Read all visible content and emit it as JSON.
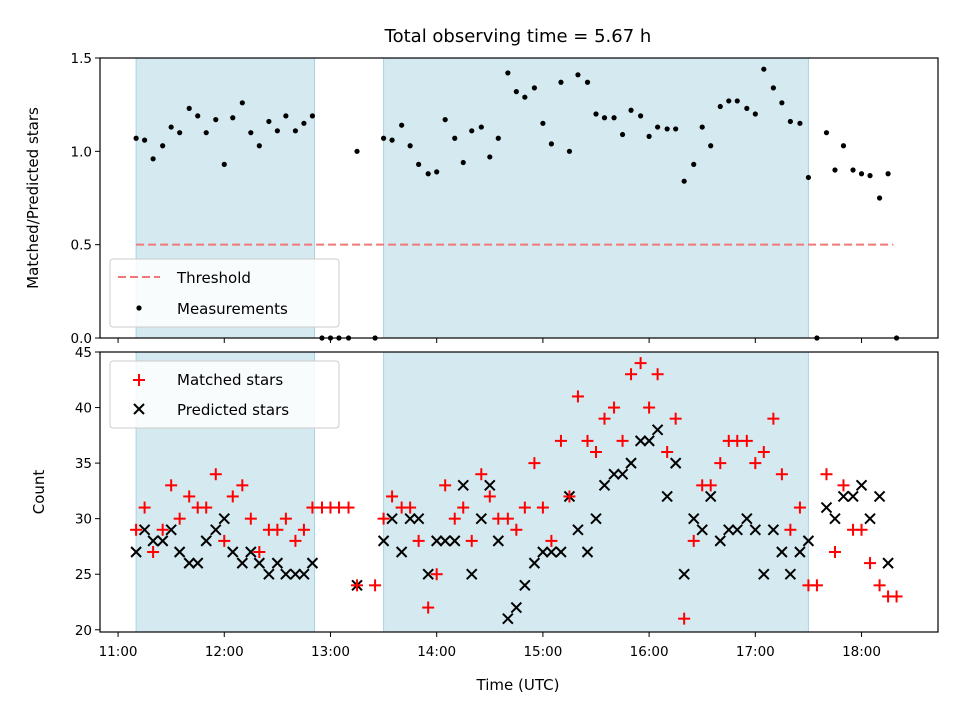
{
  "chart_data": [
    {
      "type": "scatter",
      "title": "Total observing time = 5.67 h",
      "xlabel": "",
      "ylabel": "Matched/Predicted stars",
      "xlim": [
        10.83,
        18.72
      ],
      "ylim": [
        0,
        1.5
      ],
      "yticks": [
        0.0,
        0.5,
        1.0,
        1.5
      ],
      "ytick_labels": [
        "0.0",
        "0.5",
        "1.0",
        "1.5"
      ],
      "shaded_intervals_hours": [
        [
          11.17,
          12.85
        ],
        [
          13.5,
          17.5
        ]
      ],
      "shade_color": "#d4eaf0",
      "threshold": {
        "name": "Threshold",
        "value": 0.5,
        "x_range": [
          11.17,
          18.3
        ],
        "color": "#f07878"
      },
      "series": [
        {
          "name": "Measurements",
          "color": "#000000",
          "x": [
            11.17,
            11.25,
            11.33,
            11.42,
            11.5,
            11.58,
            11.67,
            11.75,
            11.83,
            11.92,
            12.0,
            12.08,
            12.17,
            12.25,
            12.33,
            12.42,
            12.5,
            12.58,
            12.67,
            12.75,
            12.83,
            12.92,
            13.0,
            13.08,
            13.17,
            13.25,
            13.42,
            13.5,
            13.58,
            13.67,
            13.75,
            13.83,
            13.92,
            14.0,
            14.08,
            14.17,
            14.25,
            14.33,
            14.42,
            14.5,
            14.58,
            14.67,
            14.75,
            14.83,
            14.92,
            15.0,
            15.08,
            15.17,
            15.25,
            15.33,
            15.42,
            15.5,
            15.58,
            15.67,
            15.75,
            15.83,
            15.92,
            16.0,
            16.08,
            16.17,
            16.25,
            16.33,
            16.42,
            16.5,
            16.58,
            16.67,
            16.75,
            16.83,
            16.92,
            17.0,
            17.08,
            17.17,
            17.25,
            17.33,
            17.42,
            17.5,
            17.58,
            17.67,
            17.75,
            17.83,
            17.92,
            18.0,
            18.08,
            18.17,
            18.25,
            18.33
          ],
          "y": [
            1.07,
            1.06,
            0.96,
            1.03,
            1.13,
            1.1,
            1.23,
            1.19,
            1.1,
            1.17,
            0.93,
            1.18,
            1.26,
            1.1,
            1.03,
            1.16,
            1.11,
            1.19,
            1.11,
            1.15,
            1.19,
            0.0,
            0.0,
            0.0,
            0.0,
            1.0,
            0.0,
            1.07,
            1.06,
            1.14,
            1.03,
            0.93,
            0.88,
            0.89,
            1.17,
            1.07,
            0.94,
            1.11,
            1.13,
            0.97,
            1.07,
            1.42,
            1.32,
            1.29,
            1.34,
            1.15,
            1.04,
            1.37,
            1.0,
            1.41,
            1.37,
            1.2,
            1.18,
            1.18,
            1.09,
            1.22,
            1.19,
            1.08,
            1.13,
            1.12,
            1.12,
            0.84,
            0.93,
            1.13,
            1.03,
            1.24,
            1.27,
            1.27,
            1.23,
            1.2,
            1.44,
            1.34,
            1.26,
            1.16,
            1.15,
            0.86,
            0.0,
            1.1,
            0.9,
            1.03,
            0.9,
            0.88,
            0.87,
            0.75,
            0.88,
            0.0
          ]
        }
      ],
      "legend": [
        "Threshold",
        "Measurements"
      ],
      "legend_position": "lower-left"
    },
    {
      "type": "scatter",
      "title": "",
      "xlabel": "Time (UTC)",
      "ylabel": "Count",
      "xlim": [
        10.83,
        18.72
      ],
      "ylim": [
        19.8,
        45
      ],
      "yticks": [
        20,
        25,
        30,
        35,
        40,
        45
      ],
      "ytick_labels": [
        "20",
        "25",
        "30",
        "35",
        "40",
        "45"
      ],
      "xticks": [
        11,
        12,
        13,
        14,
        15,
        16,
        17,
        18
      ],
      "xtick_labels": [
        "11:00",
        "12:00",
        "13:00",
        "14:00",
        "15:00",
        "16:00",
        "17:00",
        "18:00"
      ],
      "shaded_intervals_hours": [
        [
          11.17,
          12.85
        ],
        [
          13.5,
          17.5
        ]
      ],
      "shade_color": "#d4eaf0",
      "series": [
        {
          "name": "Matched stars",
          "marker": "plus",
          "color": "#ff0000",
          "x": [
            11.17,
            11.25,
            11.33,
            11.42,
            11.5,
            11.58,
            11.67,
            11.75,
            11.83,
            11.92,
            12.0,
            12.08,
            12.17,
            12.25,
            12.33,
            12.42,
            12.5,
            12.58,
            12.67,
            12.75,
            12.83,
            12.92,
            13.0,
            13.08,
            13.17,
            13.25,
            13.42,
            13.5,
            13.58,
            13.67,
            13.75,
            13.83,
            13.92,
            14.0,
            14.08,
            14.17,
            14.25,
            14.33,
            14.42,
            14.5,
            14.58,
            14.67,
            14.75,
            14.83,
            14.92,
            15.0,
            15.08,
            15.17,
            15.25,
            15.33,
            15.42,
            15.5,
            15.58,
            15.67,
            15.75,
            15.83,
            15.92,
            16.0,
            16.08,
            16.17,
            16.25,
            16.33,
            16.42,
            16.5,
            16.58,
            16.67,
            16.75,
            16.83,
            16.92,
            17.0,
            17.08,
            17.17,
            17.25,
            17.33,
            17.42,
            17.5,
            17.58,
            17.67,
            17.75,
            17.83,
            17.92,
            18.0,
            18.08,
            18.17,
            18.25,
            18.33
          ],
          "y": [
            29,
            31,
            27,
            29,
            33,
            30,
            32,
            31,
            31,
            34,
            28,
            32,
            33,
            30,
            27,
            29,
            29,
            30,
            28,
            29,
            31,
            31,
            31,
            31,
            31,
            24,
            24,
            30,
            32,
            31,
            31,
            28,
            22,
            25,
            33,
            30,
            31,
            28,
            34,
            32,
            30,
            30,
            29,
            31,
            35,
            31,
            28,
            37,
            32,
            41,
            37,
            36,
            39,
            40,
            37,
            43,
            44,
            40,
            43,
            36,
            39,
            21,
            28,
            33,
            33,
            35,
            37,
            37,
            37,
            35,
            36,
            39,
            34,
            29,
            31,
            24,
            24,
            34,
            27,
            33,
            29,
            29,
            26,
            24,
            23,
            23
          ]
        },
        {
          "name": "Predicted stars",
          "marker": "x",
          "color": "#000000",
          "x": [
            11.17,
            11.25,
            11.33,
            11.42,
            11.5,
            11.58,
            11.67,
            11.75,
            11.83,
            11.92,
            12.0,
            12.08,
            12.17,
            12.25,
            12.33,
            12.42,
            12.5,
            12.58,
            12.67,
            12.75,
            12.83,
            13.25,
            13.5,
            13.58,
            13.67,
            13.75,
            13.83,
            13.92,
            14.0,
            14.08,
            14.17,
            14.25,
            14.33,
            14.42,
            14.5,
            14.58,
            14.67,
            14.75,
            14.83,
            14.92,
            15.0,
            15.08,
            15.17,
            15.25,
            15.33,
            15.42,
            15.5,
            15.58,
            15.67,
            15.75,
            15.83,
            15.92,
            16.0,
            16.08,
            16.17,
            16.25,
            16.33,
            16.42,
            16.5,
            16.58,
            16.67,
            16.75,
            16.83,
            16.92,
            17.0,
            17.08,
            17.17,
            17.25,
            17.33,
            17.42,
            17.5,
            17.67,
            17.75,
            17.83,
            17.92,
            18.0,
            18.08,
            18.17,
            18.25
          ],
          "y": [
            27,
            29,
            28,
            28,
            29,
            27,
            26,
            26,
            28,
            29,
            30,
            27,
            26,
            27,
            26,
            25,
            26,
            25,
            25,
            25,
            26,
            24,
            28,
            30,
            27,
            30,
            30,
            25,
            28,
            28,
            28,
            33,
            25,
            30,
            33,
            28,
            21,
            22,
            24,
            26,
            27,
            27,
            27,
            32,
            29,
            27,
            30,
            33,
            34,
            34,
            35,
            37,
            37,
            38,
            32,
            35,
            25,
            30,
            29,
            32,
            28,
            29,
            29,
            30,
            29,
            25,
            29,
            27,
            25,
            27,
            28,
            31,
            30,
            32,
            32,
            33,
            30,
            32,
            26
          ]
        }
      ],
      "legend": [
        "Matched stars",
        "Predicted stars"
      ],
      "legend_position": "upper-left"
    }
  ]
}
